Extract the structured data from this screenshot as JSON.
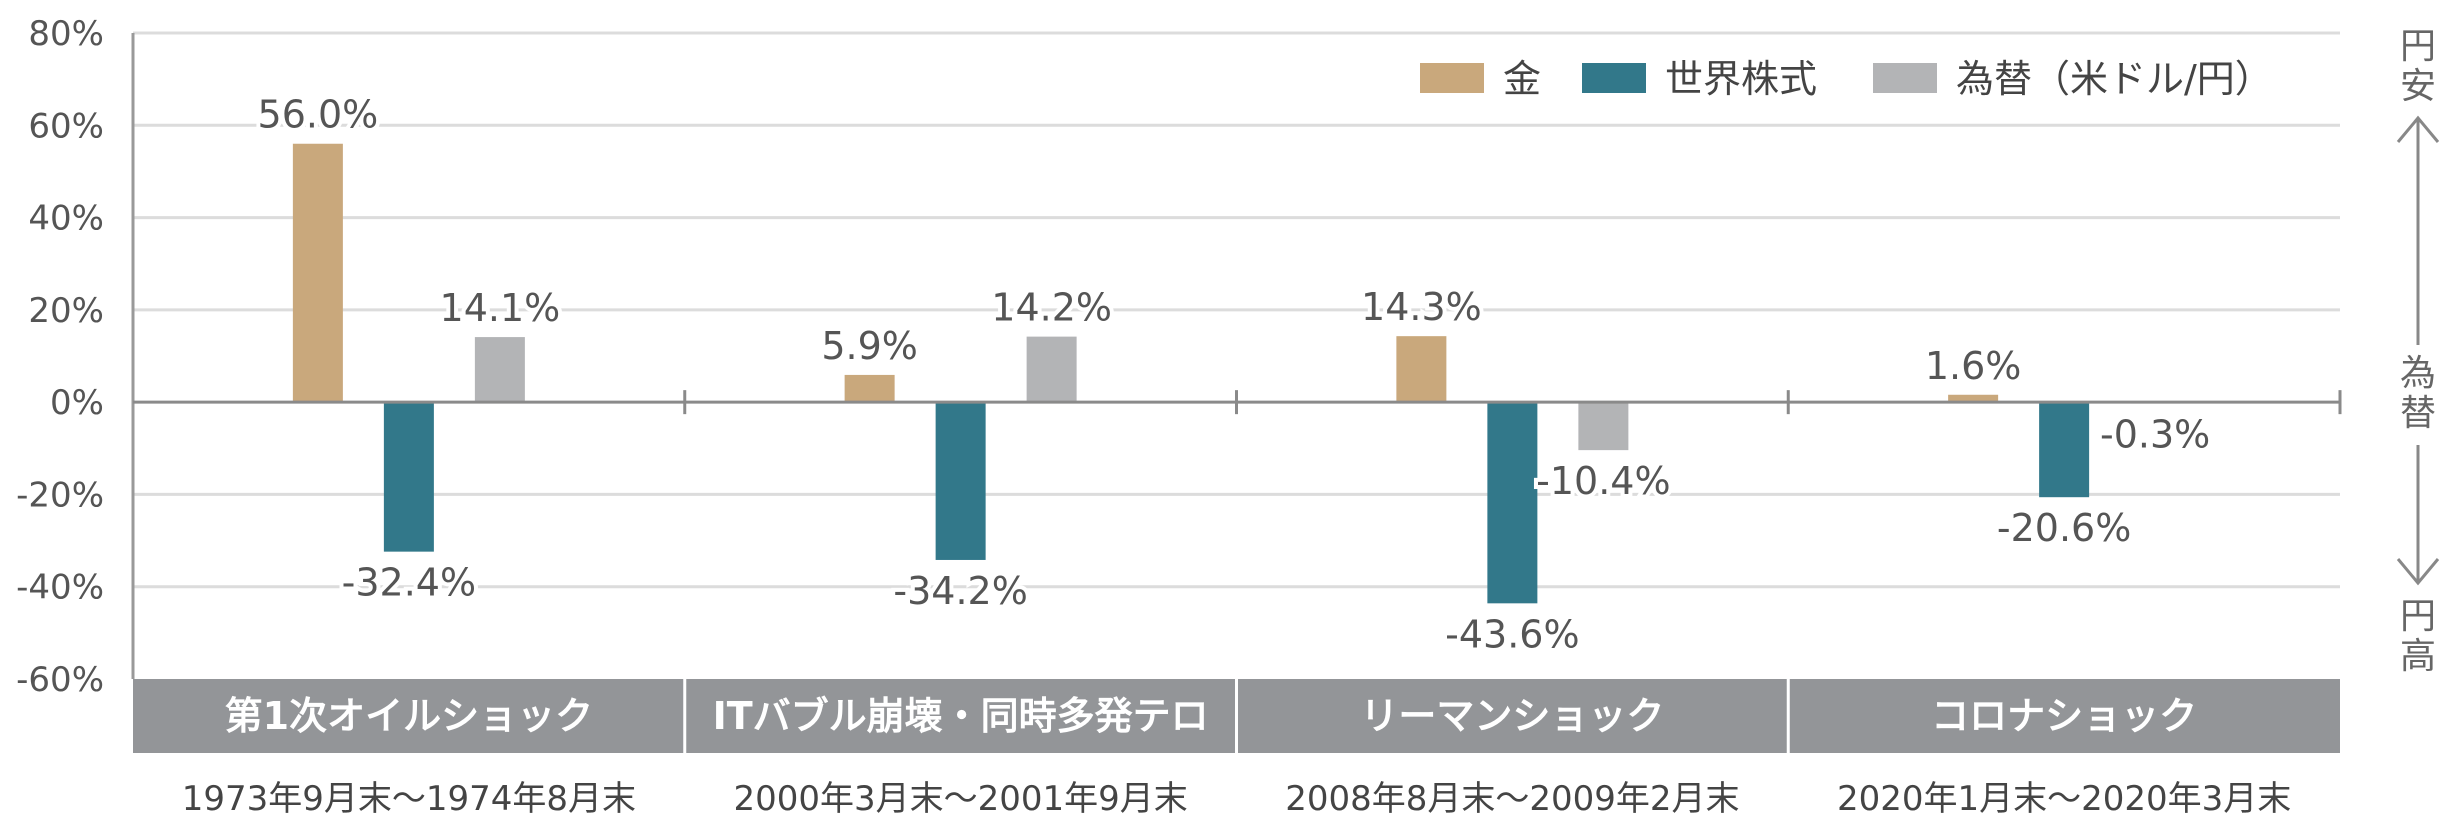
{
  "chart_data": {
    "type": "bar",
    "categories": [
      "第1次オイルショック",
      "ITバブル崩壊・同時多発テロ",
      "リーマンショック",
      "コロナショック"
    ],
    "periods": [
      "1973年9月末～1974年8月末",
      "2000年3月末～2001年9月末",
      "2008年8月末～2009年2月末",
      "2020年1月末～2020年3月末"
    ],
    "series": [
      {
        "name": "金",
        "color": "#c9a87c",
        "values": [
          56.0,
          5.9,
          14.3,
          1.6
        ],
        "labels": [
          "56.0%",
          "5.9%",
          "14.3%",
          "1.6%"
        ]
      },
      {
        "name": "世界株式",
        "color": "#32788a",
        "values": [
          -32.4,
          -34.2,
          -43.6,
          -20.6
        ],
        "labels": [
          "-32.4%",
          "-34.2%",
          "-43.6%",
          "-20.6%"
        ]
      },
      {
        "name": "為替（米ドル/円）",
        "color": "#b3b4b6",
        "values": [
          14.1,
          14.2,
          -10.4,
          -0.3
        ],
        "labels": [
          "14.1%",
          "14.2%",
          "-10.4%",
          "-0.3%"
        ]
      }
    ],
    "ylim": [
      -60,
      80
    ],
    "yticks": [
      80,
      60,
      40,
      20,
      0,
      -20,
      -40,
      -60
    ],
    "ytick_labels": [
      "80%",
      "60%",
      "40%",
      "20%",
      "0%",
      "-20%",
      "-40%",
      "-60%"
    ],
    "grid": true,
    "legend": "top-right",
    "category_band_color": "#939598"
  },
  "side_axis": {
    "top": "円安",
    "middle": "為替",
    "bottom": "円高"
  }
}
